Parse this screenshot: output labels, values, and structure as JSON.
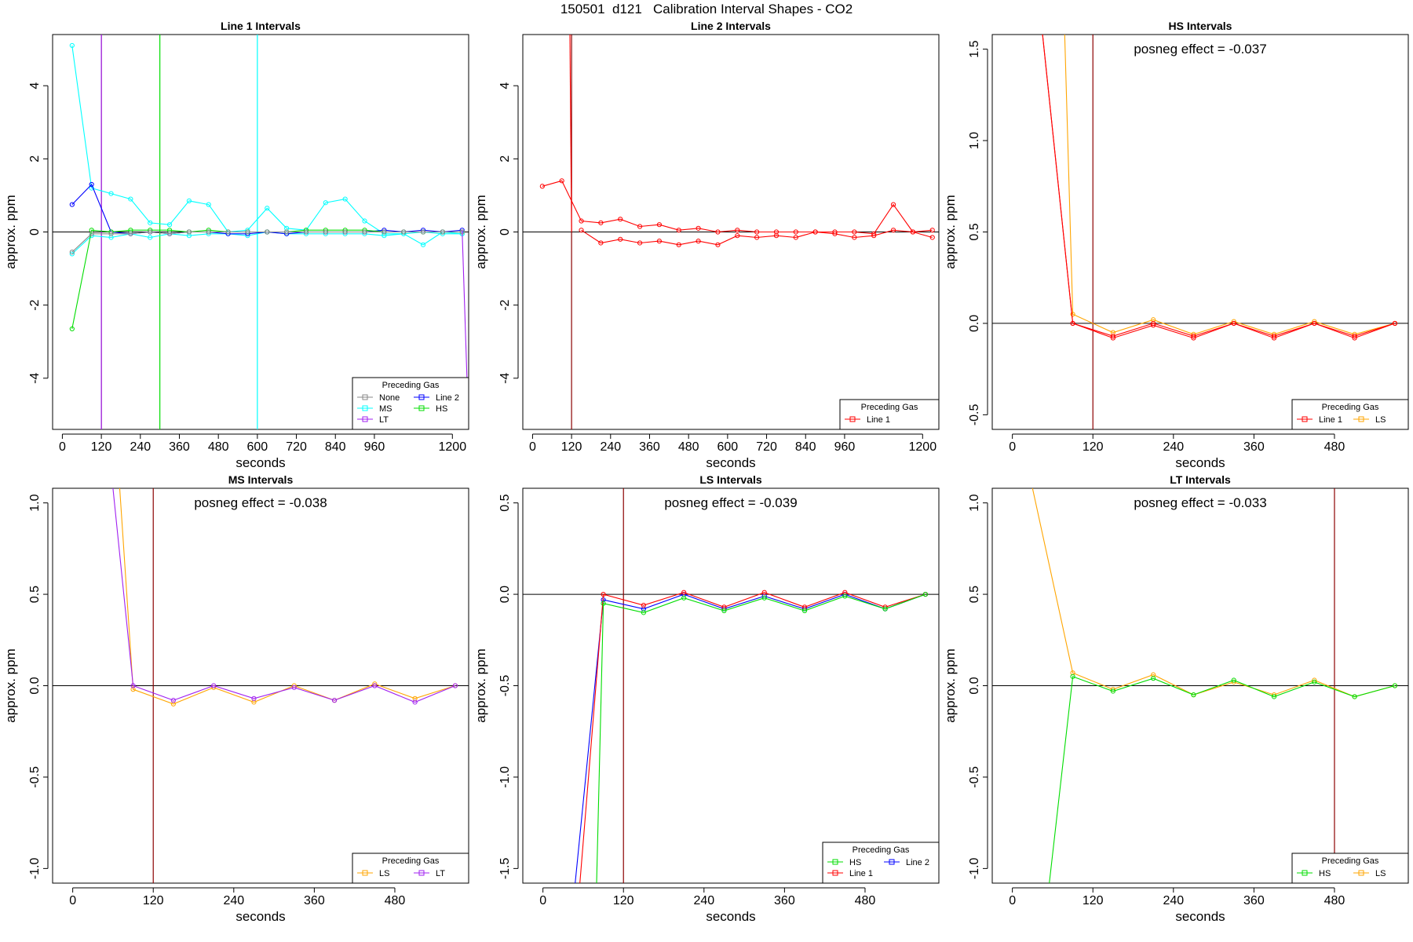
{
  "title": "150501  d121   Calibration Interval Shapes - CO2",
  "chart_data": [
    {
      "type": "line",
      "title": "Line 1 Intervals",
      "xlabel": "seconds",
      "ylabel": "approx. ppm",
      "xlim": [
        -30,
        1250
      ],
      "ylim": [
        -5.4,
        5.4
      ],
      "xticks": [
        0,
        120,
        240,
        360,
        480,
        600,
        720,
        840,
        960,
        1200
      ],
      "yticks": [
        -4,
        -2,
        0,
        2,
        4
      ],
      "hline": 0,
      "vlines": [
        {
          "x": 120,
          "color": "#8b0000"
        },
        {
          "x": 120,
          "color": "#a020f0"
        },
        {
          "x": 300,
          "color": "#00dd00"
        },
        {
          "x": 600,
          "color": "#00ffff"
        }
      ],
      "annotation": "",
      "legend": {
        "title": "Preceding Gas",
        "position": "bottom-right",
        "columns": 2,
        "entries": [
          "None",
          "Line 2",
          "MS",
          "HS",
          "LT"
        ]
      },
      "series": [
        {
          "name": "MS",
          "color": "#00ffff",
          "x": [
            30,
            90,
            150,
            210,
            270,
            330,
            390,
            450,
            510,
            570,
            630,
            690,
            750,
            810,
            870,
            930,
            990,
            1050,
            1110,
            1170,
            1230
          ],
          "y": [
            5.1,
            1.2,
            1.05,
            0.9,
            0.25,
            0.2,
            0.85,
            0.75,
            0.0,
            0.05,
            0.65,
            0.1,
            0.05,
            0.8,
            0.9,
            0.3,
            -0.05,
            -0.05,
            -0.35,
            0.0,
            -0.05
          ]
        },
        {
          "name": "MS",
          "color": "#00ffff",
          "x": [
            30,
            90,
            150,
            210,
            270,
            330,
            390,
            450,
            510,
            570,
            630,
            690,
            750,
            810,
            870,
            930,
            990,
            1050,
            1110,
            1170,
            1230
          ],
          "y": [
            -0.6,
            -0.1,
            -0.15,
            -0.05,
            -0.15,
            -0.05,
            -0.1,
            -0.05,
            -0.05,
            -0.1,
            0.0,
            -0.05,
            -0.05,
            -0.05,
            -0.05,
            -0.05,
            -0.1,
            -0.05,
            0.0,
            -0.05,
            -0.05
          ]
        },
        {
          "name": "Line 2",
          "color": "#0000ff",
          "x": [
            30,
            90,
            150,
            210,
            270,
            330,
            390,
            450,
            510,
            570,
            630,
            690,
            750,
            810,
            870,
            930,
            990,
            1050,
            1110,
            1170,
            1230
          ],
          "y": [
            0.75,
            1.3,
            0.0,
            -0.05,
            0.0,
            -0.05,
            0.0,
            0.0,
            -0.05,
            -0.05,
            0.0,
            -0.05,
            0.0,
            0.0,
            0.0,
            0.0,
            0.05,
            0.0,
            0.05,
            0.0,
            0.05
          ]
        },
        {
          "name": "HS",
          "color": "#00dd00",
          "x": [
            30,
            90,
            150,
            210,
            270,
            330,
            390,
            450,
            510,
            570,
            630,
            690,
            750,
            810,
            870,
            930,
            990,
            1050,
            1110,
            1170,
            1230
          ],
          "y": [
            -2.65,
            0.05,
            0.0,
            0.05,
            0.05,
            0.05,
            0.0,
            0.05,
            0.0,
            0.0,
            0.0,
            0.0,
            0.05,
            0.05,
            0.05,
            0.05,
            0.0,
            0.0,
            0.0,
            0.0,
            0.0
          ]
        },
        {
          "name": "None",
          "color": "#888888",
          "x": [
            30,
            90,
            150,
            210,
            270,
            330,
            390,
            450,
            510,
            570,
            630,
            690,
            750,
            810,
            870,
            930,
            990,
            1050,
            1110,
            1170,
            1230
          ],
          "y": [
            -0.55,
            -0.05,
            -0.05,
            -0.05,
            0.0,
            -0.05,
            0.0,
            0.0,
            0.0,
            0.0,
            0.0,
            0.0,
            0.0,
            0.0,
            0.0,
            0.0,
            0.0,
            0.0,
            0.0,
            0.0,
            0.0
          ]
        },
        {
          "name": "LT",
          "color": "#a020f0",
          "x": [
            1230,
            1250
          ],
          "y": [
            0.05,
            -5.4
          ],
          "points": false
        }
      ]
    },
    {
      "type": "line",
      "title": "Line 2 Intervals",
      "xlabel": "seconds",
      "ylabel": "approx. ppm",
      "xlim": [
        -30,
        1250
      ],
      "ylim": [
        -5.4,
        5.4
      ],
      "xticks": [
        0,
        120,
        240,
        360,
        480,
        600,
        720,
        840,
        960,
        1200
      ],
      "yticks": [
        -4,
        -2,
        0,
        2,
        4
      ],
      "hline": 0,
      "vlines": [
        {
          "x": 120,
          "color": "#8b0000"
        }
      ],
      "annotation": "",
      "legend": {
        "title": "Preceding Gas",
        "position": "bottom-right",
        "columns": 1,
        "entries": [
          "Line 1"
        ]
      },
      "series": [
        {
          "name": "Line 1",
          "color": "#ff0000",
          "x": [
            30,
            90,
            150,
            210,
            270,
            330,
            390,
            450,
            510,
            570,
            630,
            690,
            750,
            810,
            870,
            930,
            990,
            1050,
            1110,
            1170,
            1230
          ],
          "y": [
            1.25,
            1.4,
            0.3,
            0.25,
            0.35,
            0.15,
            0.2,
            0.05,
            0.1,
            0.0,
            0.05,
            0.0,
            0.0,
            0.0,
            0.0,
            0.0,
            0.0,
            -0.05,
            0.75,
            0.0,
            0.05
          ]
        },
        {
          "name": "Line 1",
          "color": "#ff0000",
          "x": [
            150,
            210,
            270,
            330,
            390,
            450,
            510,
            570,
            630,
            690,
            750,
            810,
            870,
            930,
            990,
            1050,
            1110,
            1170,
            1230
          ],
          "y": [
            0.05,
            -0.3,
            -0.2,
            -0.3,
            -0.25,
            -0.35,
            -0.25,
            -0.35,
            -0.1,
            -0.15,
            -0.1,
            -0.15,
            0.0,
            -0.05,
            -0.15,
            -0.1,
            0.05,
            0.0,
            -0.15
          ]
        },
        {
          "name": "Line 1",
          "color": "#ff0000",
          "x": [
            115,
            120
          ],
          "y": [
            5.4,
            0.0
          ],
          "points": false
        }
      ]
    },
    {
      "type": "line",
      "title": "HS Intervals",
      "xlabel": "seconds",
      "ylabel": "approx. ppm",
      "xlim": [
        -30,
        590
      ],
      "ylim": [
        -0.58,
        1.58
      ],
      "xticks": [
        0,
        120,
        240,
        360,
        480
      ],
      "yticks": [
        -0.5,
        0.0,
        0.5,
        1.0,
        1.5
      ],
      "hline": 0,
      "vlines": [
        {
          "x": 120,
          "color": "#8b0000"
        }
      ],
      "annotation": "posneg effect = -0.037",
      "legend": {
        "title": "Preceding Gas",
        "position": "bottom-right",
        "columns": 2,
        "entries": [
          "Line 1",
          "LS"
        ]
      },
      "series": [
        {
          "name": "LS",
          "color": "#ffa500",
          "x": [
            78,
            90,
            150,
            210,
            270,
            330,
            390,
            450,
            510,
            570
          ],
          "y": [
            1.58,
            0.05,
            -0.05,
            0.02,
            -0.06,
            0.01,
            -0.06,
            0.01,
            -0.06,
            0.0
          ]
        },
        {
          "name": "Line 1",
          "color": "#ff0000",
          "x": [
            45,
            90,
            150,
            210,
            270,
            330,
            390,
            450,
            510,
            570
          ],
          "y": [
            1.58,
            0.0,
            -0.08,
            -0.01,
            -0.08,
            0.0,
            -0.08,
            0.0,
            -0.08,
            0.0
          ]
        },
        {
          "name": "Line 1",
          "color": "#ff0000",
          "x": [
            45,
            90,
            150,
            210,
            270,
            330,
            390,
            450,
            510,
            570
          ],
          "y": [
            1.58,
            0.0,
            -0.07,
            0.0,
            -0.07,
            0.0,
            -0.07,
            0.0,
            -0.07,
            0.0
          ]
        }
      ]
    },
    {
      "type": "line",
      "title": "MS Intervals",
      "xlabel": "seconds",
      "ylabel": "approx. ppm",
      "xlim": [
        -30,
        590
      ],
      "ylim": [
        -1.08,
        1.08
      ],
      "xticks": [
        0,
        120,
        240,
        360,
        480
      ],
      "yticks": [
        -1.0,
        -0.5,
        0.0,
        0.5,
        1.0
      ],
      "hline": 0,
      "vlines": [
        {
          "x": 120,
          "color": "#8b0000"
        }
      ],
      "annotation": "posneg effect = -0.038",
      "legend": {
        "title": "Preceding Gas",
        "position": "bottom-right",
        "columns": 2,
        "entries": [
          "LS",
          "LT"
        ]
      },
      "series": [
        {
          "name": "LS",
          "color": "#ffa500",
          "x": [
            70,
            90,
            150,
            210,
            270,
            330,
            390,
            450,
            510,
            570
          ],
          "y": [
            1.08,
            -0.02,
            -0.1,
            -0.01,
            -0.09,
            0.0,
            -0.08,
            0.01,
            -0.07,
            0.0
          ]
        },
        {
          "name": "LT",
          "color": "#a020f0",
          "x": [
            60,
            90,
            150,
            210,
            270,
            330,
            390,
            450,
            510,
            570
          ],
          "y": [
            1.08,
            0.0,
            -0.08,
            0.0,
            -0.07,
            -0.01,
            -0.08,
            0.0,
            -0.09,
            0.0
          ]
        }
      ]
    },
    {
      "type": "line",
      "title": "LS Intervals",
      "xlabel": "seconds",
      "ylabel": "approx. ppm",
      "xlim": [
        -30,
        590
      ],
      "ylim": [
        -1.58,
        0.58
      ],
      "xticks": [
        0,
        120,
        240,
        360,
        480
      ],
      "yticks": [
        -1.5,
        -1.0,
        -0.5,
        0.0,
        0.5
      ],
      "hline": 0,
      "vlines": [
        {
          "x": 120,
          "color": "#8b0000"
        }
      ],
      "annotation": "posneg effect = -0.039",
      "legend": {
        "title": "Preceding Gas",
        "position": "bottom-right",
        "columns": 2,
        "entries": [
          "HS",
          "Line 2",
          "Line 1"
        ]
      },
      "series": [
        {
          "name": "Line 2",
          "color": "#0000ff",
          "x": [
            48,
            90,
            150,
            210,
            270,
            330,
            390,
            450,
            510,
            570
          ],
          "y": [
            -1.58,
            -0.03,
            -0.08,
            0.0,
            -0.08,
            -0.01,
            -0.08,
            0.0,
            -0.08,
            0.0
          ]
        },
        {
          "name": "Line 1",
          "color": "#ff0000",
          "x": [
            55,
            90,
            150,
            210,
            270,
            330,
            390,
            450,
            510,
            570
          ],
          "y": [
            -1.58,
            0.0,
            -0.06,
            0.01,
            -0.07,
            0.01,
            -0.07,
            0.01,
            -0.07,
            0.0
          ]
        },
        {
          "name": "HS",
          "color": "#00dd00",
          "x": [
            80,
            90,
            150,
            210,
            270,
            330,
            390,
            450,
            510,
            570
          ],
          "y": [
            -1.58,
            -0.05,
            -0.1,
            -0.02,
            -0.09,
            -0.02,
            -0.09,
            -0.01,
            -0.08,
            0.0
          ]
        }
      ]
    },
    {
      "type": "line",
      "title": "LT Intervals",
      "xlabel": "seconds",
      "ylabel": "approx. ppm",
      "xlim": [
        -30,
        590
      ],
      "ylim": [
        -1.08,
        1.08
      ],
      "xticks": [
        0,
        120,
        240,
        360,
        480
      ],
      "yticks": [
        -1.0,
        -0.5,
        0.0,
        0.5,
        1.0
      ],
      "hline": 0,
      "vlines": [
        {
          "x": 480,
          "color": "#8b0000"
        }
      ],
      "annotation": "posneg effect = -0.033",
      "legend": {
        "title": "Preceding Gas",
        "position": "bottom-right",
        "columns": 2,
        "entries": [
          "HS",
          "LS"
        ]
      },
      "series": [
        {
          "name": "LS",
          "color": "#ffa500",
          "x": [
            30,
            90,
            150,
            210,
            270,
            330,
            390,
            450,
            510,
            570
          ],
          "y": [
            1.08,
            0.07,
            -0.02,
            0.06,
            -0.05,
            0.02,
            -0.05,
            0.03,
            -0.06,
            0.0
          ]
        },
        {
          "name": "HS",
          "color": "#00dd00",
          "x": [
            55,
            90,
            150,
            210,
            270,
            330,
            390,
            450,
            510,
            570
          ],
          "y": [
            -1.08,
            0.05,
            -0.03,
            0.04,
            -0.05,
            0.03,
            -0.06,
            0.02,
            -0.06,
            0.0
          ]
        }
      ]
    }
  ]
}
